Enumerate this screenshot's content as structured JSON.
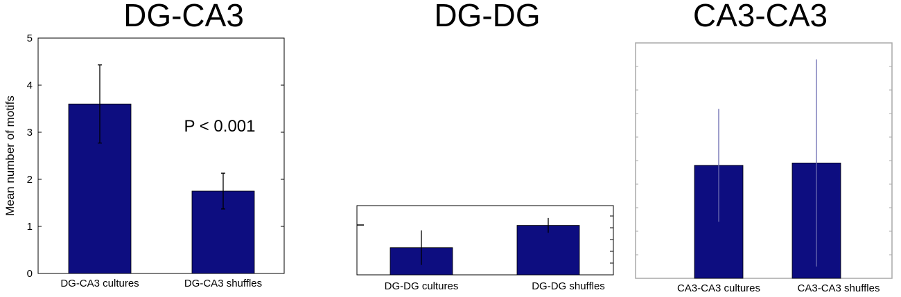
{
  "colors": {
    "bar": "#0d0d80",
    "error_dark": "#000000",
    "error_light": "#6b6bb0",
    "frame_light": "#a8a8a8"
  },
  "chart_data": [
    {
      "type": "bar",
      "title": "DG-CA3",
      "ylabel": "Mean number of motifs",
      "xlabel": "",
      "ylim": [
        0,
        5
      ],
      "yticks": [
        0,
        1,
        2,
        3,
        4,
        5
      ],
      "categories": [
        "DG-CA3 cultures",
        "DG-CA3 shuffles"
      ],
      "values": [
        3.6,
        1.75
      ],
      "errors": [
        0.83,
        0.38
      ],
      "annotation": "P < 0.001"
    },
    {
      "type": "bar",
      "title": "DG-DG",
      "ylabel": "",
      "xlabel": "",
      "categories": [
        "DG-DG cultures",
        "DG-DG shuffles"
      ],
      "values": [
        0.55,
        1.0
      ],
      "errors": [
        0.35,
        0.15
      ]
    },
    {
      "type": "bar",
      "title": "CA3-CA3",
      "ylabel": "",
      "xlabel": "",
      "categories": [
        "CA3-CA3 cultures",
        "CA3-CA3 shuffles"
      ],
      "values": [
        2.4,
        2.45
      ],
      "errors": [
        1.2,
        2.2
      ]
    }
  ]
}
